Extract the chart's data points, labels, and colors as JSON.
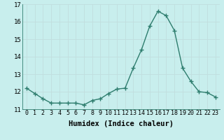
{
  "x": [
    0,
    1,
    2,
    3,
    4,
    5,
    6,
    7,
    8,
    9,
    10,
    11,
    12,
    13,
    14,
    15,
    16,
    17,
    18,
    19,
    20,
    21,
    22,
    23
  ],
  "y": [
    12.2,
    11.9,
    11.6,
    11.35,
    11.35,
    11.35,
    11.35,
    11.25,
    11.5,
    11.6,
    11.9,
    12.15,
    12.2,
    13.35,
    14.4,
    15.75,
    16.6,
    16.35,
    15.5,
    13.35,
    12.6,
    12.0,
    11.95,
    11.7
  ],
  "line_color": "#2e7d6e",
  "marker": "+",
  "markersize": 4,
  "markeredgewidth": 1.0,
  "linewidth": 1.0,
  "xlabel": "Humidex (Indice chaleur)",
  "xlabel_fontsize": 7.5,
  "ylim": [
    11.0,
    17.0
  ],
  "xlim": [
    -0.5,
    23.5
  ],
  "yticks": [
    11,
    12,
    13,
    14,
    15,
    16,
    17
  ],
  "xticks": [
    0,
    1,
    2,
    3,
    4,
    5,
    6,
    7,
    8,
    9,
    10,
    11,
    12,
    13,
    14,
    15,
    16,
    17,
    18,
    19,
    20,
    21,
    22,
    23
  ],
  "xtick_labels": [
    "0",
    "1",
    "2",
    "3",
    "4",
    "5",
    "6",
    "7",
    "8",
    "9",
    "10",
    "11",
    "12",
    "13",
    "14",
    "15",
    "16",
    "17",
    "18",
    "19",
    "20",
    "21",
    "22",
    "23"
  ],
  "bg_color": "#c8eeed",
  "grid_color": "#c0dede",
  "tick_fontsize": 6.0,
  "ytick_fontsize": 6.5
}
